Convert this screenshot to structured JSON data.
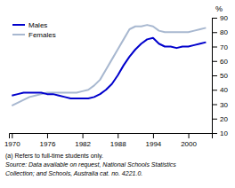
{
  "chart_data": {
    "type": "line",
    "ylabel": "%",
    "x": [
      1970,
      1971,
      1972,
      1973,
      1974,
      1975,
      1976,
      1977,
      1978,
      1979,
      1980,
      1981,
      1982,
      1983,
      1984,
      1985,
      1986,
      1987,
      1988,
      1989,
      1990,
      1991,
      1992,
      1993,
      1994,
      1995,
      1996,
      1997,
      1998,
      1999,
      2000,
      2001,
      2002,
      2003
    ],
    "series": [
      {
        "name": "Males",
        "color": "#0000cc",
        "values": [
          36,
          37,
          38,
          38,
          38,
          38,
          37,
          37,
          36,
          35,
          34,
          34,
          34,
          34,
          35,
          37,
          40,
          44,
          50,
          57,
          63,
          68,
          72,
          75,
          76,
          72,
          70,
          70,
          69,
          70,
          70,
          71,
          72,
          73
        ]
      },
      {
        "name": "Females",
        "color": "#a8b8d0",
        "values": [
          29,
          31,
          33,
          35,
          36,
          37,
          38,
          38,
          38,
          38,
          38,
          38,
          39,
          40,
          43,
          47,
          54,
          61,
          68,
          75,
          82,
          84,
          84,
          85,
          84,
          81,
          80,
          80,
          80,
          80,
          80,
          81,
          82,
          83
        ]
      }
    ],
    "xlim": [
      1969.5,
      2004
    ],
    "xticks": [
      1970,
      1976,
      1982,
      1988,
      1994,
      2000
    ],
    "ylim": [
      10,
      90
    ],
    "yticks": [
      10,
      20,
      30,
      40,
      50,
      60,
      70,
      80,
      90
    ],
    "grid": false,
    "legend": "upper left",
    "annotations": [
      "(a) Refers to full-time students only.",
      "Source: Data available on request, National Schools Statistics",
      "Collection; and Schools, Australia cat. no.  4221.0."
    ]
  }
}
